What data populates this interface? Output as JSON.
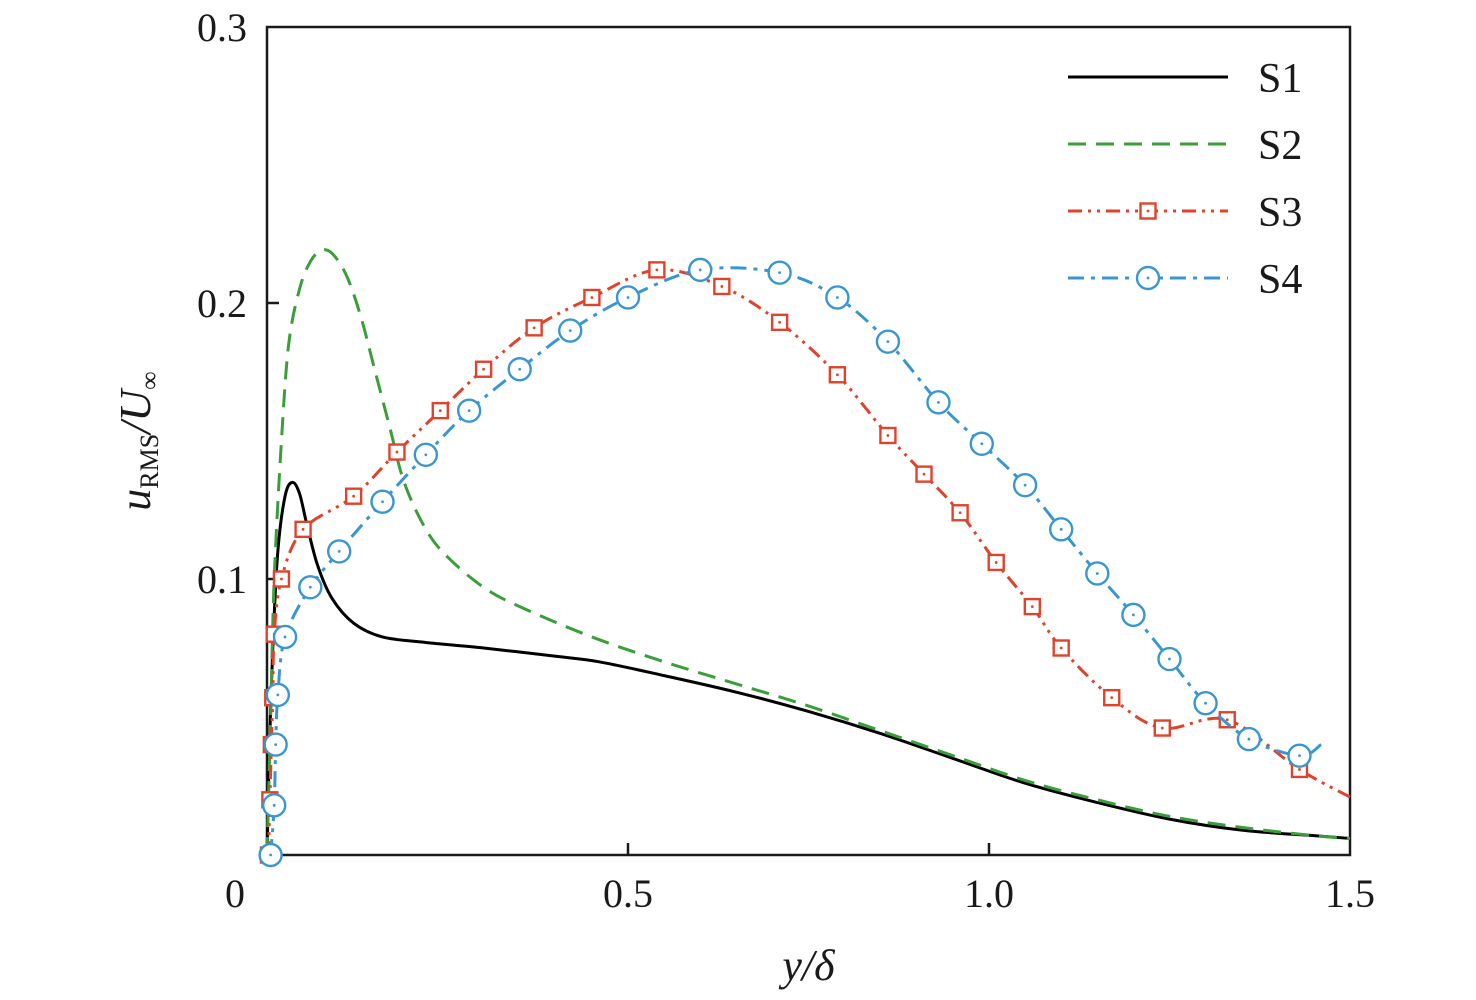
{
  "chart_data": {
    "type": "line",
    "xlabel": "y/δ",
    "ylabel": {
      "main": "u",
      "sub": "RMS",
      "tail": "/U",
      "tail_sub": "∞"
    },
    "xlim": [
      0,
      1.5
    ],
    "ylim": [
      0,
      0.3
    ],
    "x_ticks": [
      {
        "value": 0,
        "label": "0"
      },
      {
        "value": 0.5,
        "label": "0.5"
      },
      {
        "value": 1.0,
        "label": "1.0"
      },
      {
        "value": 1.5,
        "label": "1.5"
      }
    ],
    "y_ticks": [
      {
        "value": 0.1,
        "label": "0.1"
      },
      {
        "value": 0.2,
        "label": "0.2"
      },
      {
        "value": 0.3,
        "label": "0.3"
      }
    ],
    "grid": false,
    "legend_position": "top-right",
    "series": [
      {
        "name": "S1",
        "color": "#000000",
        "line": "solid",
        "marker": "none",
        "x": [
          0,
          0.003,
          0.008,
          0.015,
          0.025,
          0.035,
          0.045,
          0.055,
          0.07,
          0.09,
          0.12,
          0.16,
          0.22,
          0.3,
          0.4,
          0.46,
          0.55,
          0.65,
          0.75,
          0.85,
          0.95,
          1.05,
          1.15,
          1.25,
          1.35,
          1.45,
          1.5
        ],
        "values": [
          0,
          0.035,
          0.075,
          0.11,
          0.13,
          0.135,
          0.131,
          0.12,
          0.105,
          0.093,
          0.084,
          0.079,
          0.077,
          0.075,
          0.072,
          0.07,
          0.065,
          0.059,
          0.052,
          0.044,
          0.035,
          0.026,
          0.019,
          0.013,
          0.009,
          0.007,
          0.006
        ]
      },
      {
        "name": "S2",
        "color": "#3a9e3a",
        "line": "dashed",
        "marker": "none",
        "x": [
          0,
          0.005,
          0.01,
          0.02,
          0.03,
          0.045,
          0.06,
          0.075,
          0.09,
          0.11,
          0.13,
          0.15,
          0.17,
          0.19,
          0.22,
          0.25,
          0.3,
          0.35,
          0.45,
          0.55,
          0.65,
          0.75,
          0.85,
          0.95,
          1.05,
          1.15,
          1.25,
          1.35,
          1.45,
          1.5
        ],
        "values": [
          0,
          0.05,
          0.1,
          0.15,
          0.185,
          0.205,
          0.215,
          0.219,
          0.218,
          0.21,
          0.195,
          0.175,
          0.155,
          0.135,
          0.118,
          0.108,
          0.097,
          0.09,
          0.079,
          0.07,
          0.062,
          0.054,
          0.045,
          0.036,
          0.027,
          0.02,
          0.014,
          0.01,
          0.007,
          0.006
        ]
      },
      {
        "name": "S3",
        "color": "#e0432b",
        "line": "dash-dot-dot",
        "marker": "square",
        "x": [
          0.002,
          0.004,
          0.006,
          0.008,
          0.01,
          0.02,
          0.05,
          0.12,
          0.18,
          0.24,
          0.3,
          0.37,
          0.45,
          0.54,
          0.63,
          0.71,
          0.79,
          0.86,
          0.91,
          0.96,
          1.01,
          1.06,
          1.1,
          1.17,
          1.24,
          1.33,
          1.43,
          1.5
        ],
        "values": [
          0,
          0.02,
          0.04,
          0.057,
          0.08,
          0.1,
          0.118,
          0.13,
          0.146,
          0.161,
          0.176,
          0.191,
          0.202,
          0.212,
          0.206,
          0.193,
          0.174,
          0.152,
          0.138,
          0.124,
          0.106,
          0.09,
          0.075,
          0.057,
          0.046,
          0.049,
          0.031,
          0.021
        ],
        "marker_indices": [
          0,
          1,
          2,
          3,
          4,
          5,
          6,
          7,
          8,
          9,
          10,
          11,
          12,
          13,
          14,
          15,
          16,
          17,
          18,
          19,
          20,
          21,
          22,
          23,
          24,
          25,
          26
        ]
      },
      {
        "name": "S4",
        "color": "#3a96d0",
        "line": "dash-dot",
        "marker": "circle",
        "x": [
          0.005,
          0.01,
          0.012,
          0.015,
          0.025,
          0.06,
          0.1,
          0.16,
          0.22,
          0.28,
          0.35,
          0.42,
          0.5,
          0.6,
          0.71,
          0.79,
          0.86,
          0.93,
          0.99,
          1.05,
          1.1,
          1.15,
          1.2,
          1.25,
          1.3,
          1.36,
          1.43,
          1.46
        ],
        "values": [
          0,
          0.018,
          0.04,
          0.058,
          0.079,
          0.097,
          0.11,
          0.128,
          0.145,
          0.161,
          0.176,
          0.19,
          0.202,
          0.212,
          0.211,
          0.202,
          0.186,
          0.164,
          0.149,
          0.134,
          0.118,
          0.102,
          0.087,
          0.071,
          0.055,
          0.042,
          0.036,
          0.04
        ],
        "marker_indices": [
          0,
          1,
          2,
          3,
          4,
          5,
          6,
          7,
          8,
          9,
          10,
          11,
          12,
          13,
          14,
          15,
          16,
          17,
          18,
          19,
          20,
          21,
          22,
          23,
          24,
          25,
          26
        ]
      }
    ]
  }
}
